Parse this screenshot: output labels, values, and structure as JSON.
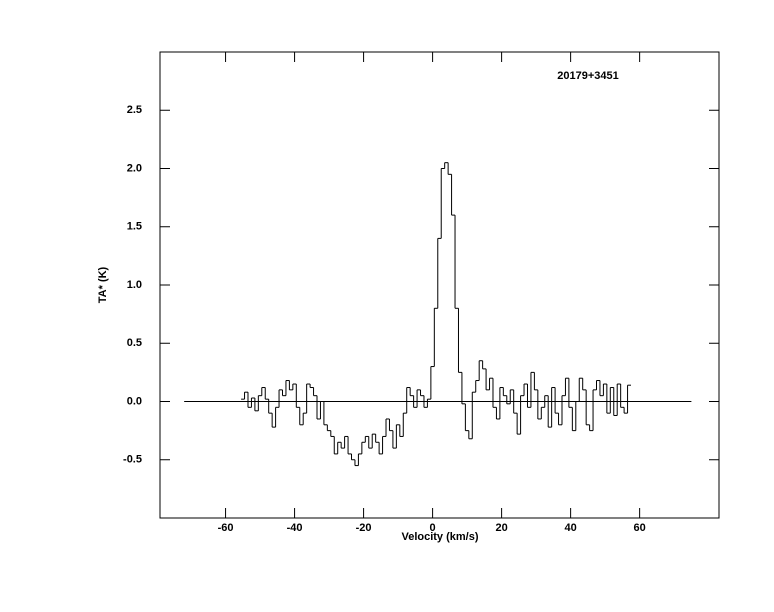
{
  "chart_data": {
    "type": "step",
    "annotation": "20179+3451",
    "xlabel": "Velocity (km/s)",
    "ylabel": "TA* (K)",
    "xlim": [
      -79,
      83
    ],
    "ylim": [
      -1,
      3
    ],
    "xticks": [
      -60,
      -40,
      -20,
      0,
      20,
      40,
      60
    ],
    "yticks": [
      -0.5,
      {
        "value": 0,
        "label": "0.0"
      },
      0.5,
      {
        "value": 1,
        "label": "1.0"
      },
      1.5,
      {
        "value": 2,
        "label": "2.0"
      },
      2.5
    ],
    "baseline": {
      "value": 0,
      "x": [
        -72,
        75
      ]
    },
    "color": "#000000",
    "x": [
      -55,
      -54,
      -53,
      -52,
      -51,
      -50,
      -49,
      -48,
      -47,
      -46,
      -45,
      -44,
      -43,
      -42,
      -41,
      -40,
      -39,
      -38,
      -37,
      -36,
      -35,
      -34,
      -33,
      -32,
      -31,
      -30,
      -29,
      -28,
      -27,
      -26,
      -25,
      -24,
      -23,
      -22,
      -21,
      -20,
      -19,
      -18,
      -17,
      -16,
      -15,
      -14,
      -13,
      -12,
      -11,
      -10,
      -9,
      -8,
      -7,
      -6,
      -5,
      -4,
      -3,
      -2,
      -1,
      0,
      1,
      2,
      3,
      4,
      5,
      6,
      7,
      8,
      9,
      10,
      11,
      12,
      13,
      14,
      15,
      16,
      17,
      18,
      19,
      20,
      21,
      22,
      23,
      24,
      25,
      26,
      27,
      28,
      29,
      30,
      31,
      32,
      33,
      34,
      35,
      36,
      37,
      38,
      39,
      40,
      41,
      42,
      43,
      44,
      45,
      46,
      47,
      48,
      49,
      50,
      51,
      52,
      53,
      54,
      55,
      56,
      57
    ],
    "values": [
      0.02,
      0.08,
      -0.05,
      0.03,
      -0.08,
      0.05,
      0.12,
      0.02,
      -0.1,
      -0.22,
      -0.05,
      0.1,
      0.05,
      0.18,
      0.1,
      0.15,
      -0.05,
      -0.2,
      -0.1,
      0.15,
      0.12,
      0.05,
      -0.15,
      0.0,
      -0.2,
      -0.25,
      -0.3,
      -0.45,
      -0.35,
      -0.4,
      -0.3,
      -0.45,
      -0.5,
      -0.55,
      -0.45,
      -0.35,
      -0.3,
      -0.4,
      -0.28,
      -0.35,
      -0.45,
      -0.3,
      -0.15,
      -0.25,
      -0.4,
      -0.2,
      -0.3,
      -0.1,
      0.12,
      0.05,
      -0.05,
      0.1,
      0.05,
      -0.05,
      0.02,
      0.3,
      0.8,
      1.4,
      2.0,
      2.05,
      1.95,
      1.6,
      0.8,
      0.25,
      -0.02,
      -0.25,
      -0.32,
      0.08,
      0.18,
      0.35,
      0.28,
      0.1,
      0.2,
      -0.05,
      -0.15,
      0.12,
      0.05,
      -0.02,
      0.1,
      -0.1,
      -0.28,
      0.05,
      0.15,
      -0.05,
      0.25,
      0.1,
      -0.15,
      -0.05,
      0.05,
      -0.22,
      0.12,
      -0.1,
      -0.2,
      0.05,
      0.2,
      -0.05,
      -0.25,
      0.0,
      0.2,
      0.1,
      -0.2,
      -0.25,
      0.1,
      0.18,
      0.05,
      0.15,
      -0.1,
      0.12,
      -0.12,
      0.15,
      -0.05,
      -0.1,
      0.14
    ]
  }
}
